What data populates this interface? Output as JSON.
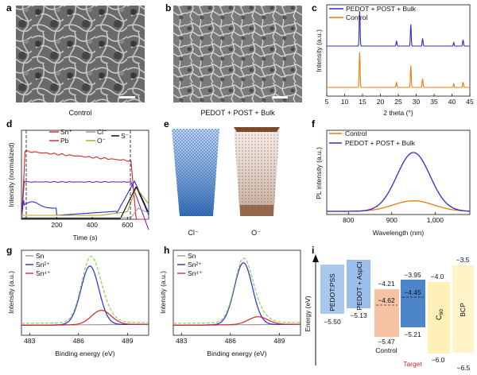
{
  "panels": {
    "a": {
      "label": "a",
      "caption": "Control"
    },
    "b": {
      "label": "b",
      "caption": "PEDOT + POST + Bulk"
    },
    "c": {
      "label": "c"
    },
    "d": {
      "label": "d"
    },
    "e": {
      "label": "e",
      "labels": [
        "Cl⁻",
        "O⁻"
      ]
    },
    "f": {
      "label": "f"
    },
    "g": {
      "label": "g"
    },
    "h": {
      "label": "h"
    },
    "i": {
      "label": "i"
    }
  },
  "colors": {
    "blue": "#2b2bd6",
    "orange": "#e87b10",
    "red": "#d8232a",
    "purple": "#7a2a9a",
    "grey": "#9a9a9a",
    "green_dash": "#8fd14f",
    "black": "#000000",
    "sem_dark": "#4a4a4a",
    "pedot": "#a8c8ee",
    "pedot2": "#9bbfea",
    "control": "#f6c4a4",
    "target": "#4d86c8",
    "c60": "#fff0b8",
    "bcp": "#fff3c8"
  },
  "chart_data": [
    {
      "panel": "c",
      "type": "line",
      "xlabel": "2 theta (°)",
      "ylabel": "Intensity (a.u.)",
      "xlim": [
        5,
        45
      ],
      "xticks": [
        5,
        10,
        15,
        20,
        25,
        30,
        35,
        40,
        45
      ],
      "series": [
        {
          "name": "PEDOT + POST + Bulk",
          "color": "#2b2bd6",
          "peaks": [
            [
              14.2,
              1.0
            ],
            [
              24.5,
              0.15
            ],
            [
              28.5,
              0.62
            ],
            [
              31.8,
              0.22
            ],
            [
              40.5,
              0.1
            ],
            [
              43.1,
              0.18
            ]
          ]
        },
        {
          "name": "Control",
          "color": "#e87b10",
          "peaks": [
            [
              14.2,
              1.0
            ],
            [
              24.5,
              0.15
            ],
            [
              28.5,
              0.62
            ],
            [
              31.8,
              0.25
            ],
            [
              40.5,
              0.1
            ],
            [
              43.1,
              0.15
            ]
          ]
        }
      ],
      "legend": "top-right"
    },
    {
      "panel": "d",
      "type": "line",
      "xlabel": "Time (s)",
      "ylabel": "Intensity (normalized)",
      "xlim": [
        0,
        720
      ],
      "xticks": [
        200,
        400,
        600
      ],
      "series": [
        {
          "name": "Sn⁺",
          "color": "#d8232a"
        },
        {
          "name": "Pb",
          "color": "#d8232a"
        },
        {
          "name": "Cl⁻",
          "color": "#9a9a9a"
        },
        {
          "name": "O⁻",
          "color": "#b8a020"
        },
        {
          "name": "S⁻",
          "color": "#000000"
        }
      ],
      "legend": "top"
    },
    {
      "panel": "f",
      "type": "line",
      "xlabel": "Wavelength (nm)",
      "ylabel": "PL intensity (a.u.)",
      "xlim": [
        750,
        1080
      ],
      "xticks": [
        800,
        900,
        1000
      ],
      "xticklabels": [
        "800",
        "900",
        "1,000"
      ],
      "series": [
        {
          "name": "Control",
          "color": "#e87b10",
          "center": 950,
          "height": 0.18,
          "fwhm": 110
        },
        {
          "name": "PEDOT + POST + Bulk",
          "color": "#2b2bd6",
          "center": 950,
          "height": 1.0,
          "fwhm": 90
        }
      ],
      "legend": "top-left"
    },
    {
      "panel": "g",
      "type": "line",
      "xlabel": "Binding energy (eV)",
      "ylabel": "Intensity (a.u.)",
      "xlim": [
        482.5,
        490.3
      ],
      "xticks": [
        483,
        486,
        489
      ],
      "reverse_x": false,
      "series": [
        {
          "name": "Sn",
          "color": "#9a9a9a"
        },
        {
          "name": "Sn²⁺",
          "color": "#2b2bd6",
          "center": 486.7,
          "height": 0.9
        },
        {
          "name": "Sn⁴⁺",
          "color": "#d8232a",
          "center": 487.4,
          "height": 0.22
        }
      ],
      "legend": "top-left"
    },
    {
      "panel": "h",
      "type": "line",
      "xlabel": "Binding energy (eV)",
      "ylabel": "Intensity (a.u.)",
      "xlim": [
        482.5,
        490.3
      ],
      "xticks": [
        483,
        486,
        489
      ],
      "series": [
        {
          "name": "Sn",
          "color": "#9a9a9a"
        },
        {
          "name": "Sn²⁺",
          "color": "#2b2bd6",
          "center": 486.8,
          "height": 0.95
        },
        {
          "name": "Sn⁴⁺",
          "color": "#d8232a",
          "center": 487.7,
          "height": 0.12
        }
      ],
      "legend": "top-left"
    },
    {
      "panel": "i",
      "type": "bar",
      "ylabel": "Energy (eV)",
      "bands": [
        {
          "name": "PEDOT:PSS",
          "lumo": null,
          "homo": -5.5,
          "bottom_label": "−5.50"
        },
        {
          "name": "PEDOT + AspCl",
          "lumo": null,
          "homo": -5.13,
          "bottom_label": "−5.13"
        },
        {
          "name": "Control",
          "lumo": -4.21,
          "homo": -5.47,
          "fermi": -4.62,
          "top_label": "−4.21",
          "bottom_label": "−5.47",
          "mid_label": "−4.62"
        },
        {
          "name": "Target",
          "lumo": -3.95,
          "homo": -5.21,
          "fermi": -4.45,
          "top_label": "−3.95",
          "bottom_label": "−5.21",
          "mid_label": "−4.45"
        },
        {
          "name": "C60",
          "lumo": -4.0,
          "homo": -6.0,
          "top_label": "−4.0",
          "bottom_label": "−6.0"
        },
        {
          "name": "BCP",
          "lumo": -3.5,
          "homo": -6.5,
          "top_label": "−3.5",
          "bottom_label": "−6.5"
        }
      ],
      "group_labels": [
        "Control",
        "Target"
      ]
    }
  ],
  "text": {
    "c_leg1": "PEDOT + POST + Bulk",
    "c_leg2": "Control",
    "c_x": "2 theta (°)",
    "c_y": "Intensity (a.u.)",
    "d_sn": "Sn⁺",
    "d_pb": "Pb",
    "d_cl": "Cl⁻",
    "d_o": "O⁻",
    "d_s": "S⁻",
    "d_x": "Time (s)",
    "d_y": "Intensity (normalized)",
    "f_leg1": "Control",
    "f_leg2": "PEDOT + POST + Bulk",
    "f_x": "Wavelength (nm)",
    "f_y": "PL intensity (a.u.)",
    "g_sn": "Sn",
    "g_sn2": "Sn²⁺",
    "g_sn4": "Sn⁴⁺",
    "g_x": "Binding energy (eV)",
    "g_y": "Intensity (a.u.)",
    "h_sn": "Sn",
    "h_sn2": "Sn²⁺",
    "h_sn4": "Sn⁴⁺",
    "h_x": "Binding energy (eV)",
    "h_y": "Intensity (a.u.)",
    "i_y": "Energy (eV)",
    "i_pedot": "PEDOT:PSS",
    "i_aspcl": "PEDOT + AspCl",
    "i_c60": "C",
    "i_c60_sub": "60",
    "i_bcp": "BCP",
    "i_control": "Control",
    "i_target": "Target",
    "i_n550": "−5.50",
    "i_n513": "−5.13",
    "i_n421": "−4.21",
    "i_n462": "−4.62",
    "i_n547": "−5.47",
    "i_n395": "−3.95",
    "i_n445": "−4.45",
    "i_n521": "−5.21",
    "i_n40": "−4.0",
    "i_n60": "−6.0",
    "i_n35": "−3.5",
    "i_n65": "−6.5",
    "c_t5": "5",
    "c_t10": "10",
    "c_t15": "15",
    "c_t20": "20",
    "c_t25": "25",
    "c_t30": "30",
    "c_t35": "35",
    "c_t40": "40",
    "c_t45": "45",
    "d_t200": "200",
    "d_t400": "400",
    "d_t600": "600",
    "f_t800": "800",
    "f_t900": "900",
    "f_t1000": "1,000",
    "g_t483": "483",
    "g_t486": "486",
    "g_t489": "489",
    "h_t483": "483",
    "h_t486": "486",
    "h_t489": "489"
  }
}
